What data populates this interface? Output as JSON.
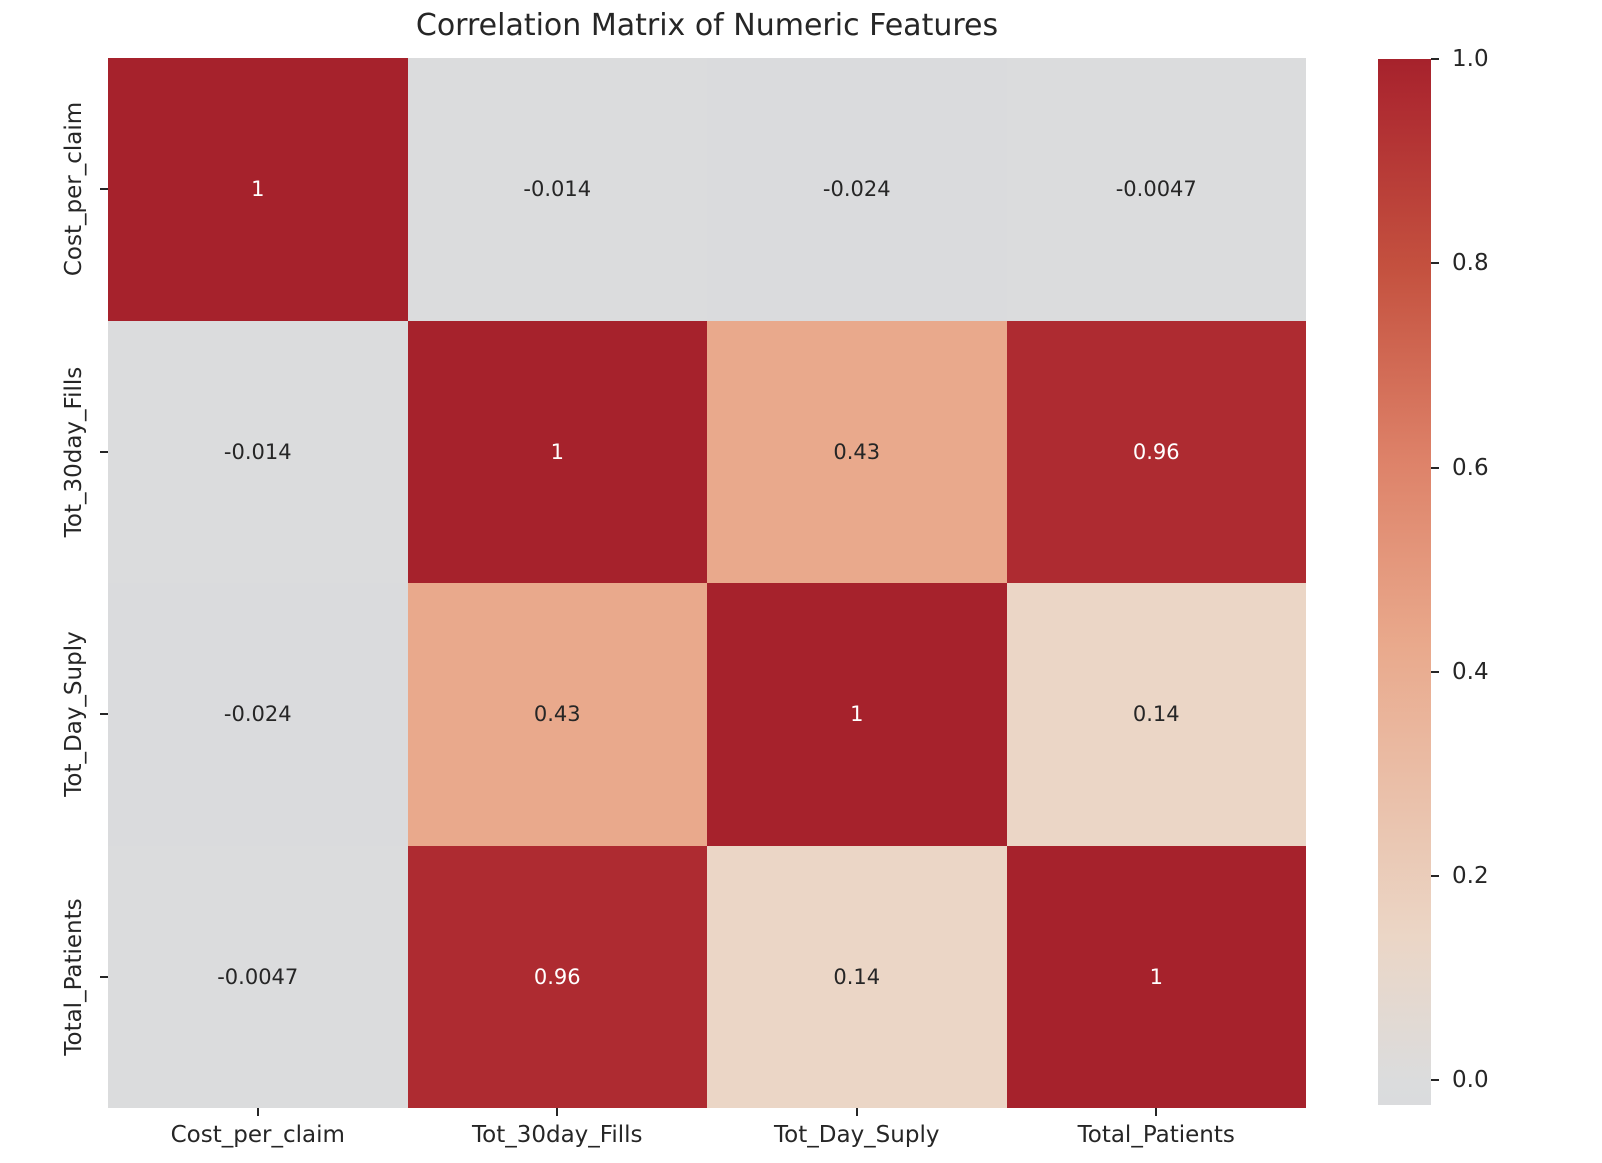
{
  "chart_data": {
    "type": "heatmap",
    "title": "Correlation Matrix of Numeric Features",
    "categories": [
      "Cost_per_claim",
      "Tot_30day_Fills",
      "Tot_Day_Suply",
      "Total_Patients"
    ],
    "xlabel": "",
    "ylabel": "",
    "grid": false,
    "matrix": [
      [
        1,
        -0.014,
        -0.024,
        -0.0047
      ],
      [
        -0.014,
        1,
        0.43,
        0.96
      ],
      [
        -0.024,
        0.43,
        1,
        0.14
      ],
      [
        -0.0047,
        0.96,
        0.14,
        1
      ]
    ],
    "cell_labels": [
      [
        "1",
        "-0.014",
        "-0.024",
        "-0.0047"
      ],
      [
        "-0.014",
        "1",
        "0.43",
        "0.96"
      ],
      [
        "-0.024",
        "0.43",
        "1",
        "0.14"
      ],
      [
        "-0.0047",
        "0.96",
        "0.14",
        "1"
      ]
    ],
    "cell_colors": [
      [
        "#a6222c",
        "#dbdcdd",
        "#dadbdd",
        "#dbdcdd"
      ],
      [
        "#dbdcdd",
        "#a6222c",
        "#e9a98c",
        "#ae2b31"
      ],
      [
        "#dadbdd",
        "#e9a98c",
        "#a6222c",
        "#ebd6c6"
      ],
      [
        "#dbdcdd",
        "#ae2b31",
        "#ebd6c6",
        "#a6222c"
      ]
    ],
    "cell_text_colors": [
      [
        "#ffffff",
        "#262626",
        "#262626",
        "#262626"
      ],
      [
        "#262626",
        "#ffffff",
        "#262626",
        "#ffffff"
      ],
      [
        "#262626",
        "#262626",
        "#ffffff",
        "#262626"
      ],
      [
        "#262626",
        "#ffffff",
        "#262626",
        "#ffffff"
      ]
    ],
    "colorbar": {
      "position": "right",
      "vmin": -0.024,
      "vmax": 1.0,
      "tick_labels": [
        "1.0",
        "0.8",
        "0.6",
        "0.4",
        "0.2",
        "0.0"
      ],
      "tick_values": [
        1.0,
        0.8,
        0.6,
        0.4,
        0.2,
        0.0
      ],
      "gradient_stops": [
        {
          "pos": 0.0,
          "color": "#dadbdd"
        },
        {
          "pos": 2.3,
          "color": "#dbdcdd"
        },
        {
          "pos": 16.0,
          "color": "#ebd6c6"
        },
        {
          "pos": 44.0,
          "color": "#e9a98c"
        },
        {
          "pos": 62.0,
          "color": "#dd8168"
        },
        {
          "pos": 80.0,
          "color": "#c4513f"
        },
        {
          "pos": 96.0,
          "color": "#ae2b31"
        },
        {
          "pos": 100.0,
          "color": "#a6222c"
        }
      ]
    },
    "colors": {
      "high": "#a6222c",
      "mid": "#e9a98c",
      "low": "#dbdcdd",
      "text_dark": "#262626",
      "text_light": "#ffffff",
      "tick": "#262626"
    }
  }
}
